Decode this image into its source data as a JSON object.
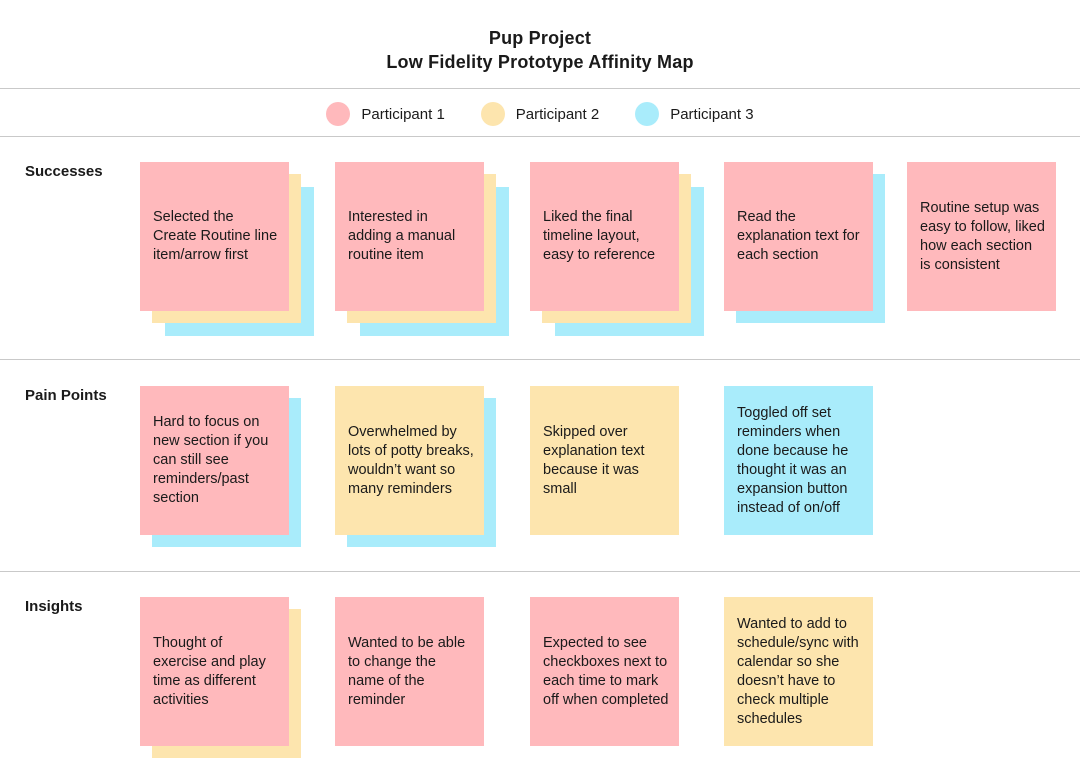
{
  "header": {
    "title_line1": "Pup Project",
    "title_line2": "Low Fidelity Prototype Affinity Map"
  },
  "colors": {
    "participant_1": "#ffb9bc",
    "participant_2": "#fde5ae",
    "participant_3": "#a9ecfb"
  },
  "legend": [
    {
      "label": "Participant 1",
      "color": "#ffb9bc"
    },
    {
      "label": "Participant 2",
      "color": "#fde5ae"
    },
    {
      "label": "Participant 3",
      "color": "#a9ecfb"
    }
  ],
  "rows": [
    {
      "label": "Successes",
      "notes": [
        {
          "text": "Selected the Create Routine line item/arrow first",
          "stack": [
            "#ffb9bc",
            "#fde5ae",
            "#a9ecfb"
          ]
        },
        {
          "text": "Interested in adding a manual routine item",
          "stack": [
            "#ffb9bc",
            "#fde5ae",
            "#a9ecfb"
          ]
        },
        {
          "text": "Liked the final timeline layout, easy to reference",
          "stack": [
            "#ffb9bc",
            "#fde5ae",
            "#a9ecfb"
          ]
        },
        {
          "text": "Read the explanation text for each section",
          "stack": [
            "#ffb9bc",
            "#a9ecfb"
          ]
        },
        {
          "text": "Routine setup was easy to follow, liked how each section is consistent",
          "stack": [
            "#ffb9bc"
          ]
        }
      ]
    },
    {
      "label": "Pain Points",
      "notes": [
        {
          "text": "Hard to focus on new section if you can still see reminders/past section",
          "stack": [
            "#ffb9bc",
            "#a9ecfb"
          ]
        },
        {
          "text": "Overwhelmed by lots of potty breaks, wouldn’t want so many reminders",
          "stack": [
            "#fde5ae",
            "#a9ecfb"
          ]
        },
        {
          "text": "Skipped over explanation text because it was small",
          "stack": [
            "#fde5ae"
          ]
        },
        {
          "text": "Toggled off set reminders when done because he thought it was an expansion button instead of on/off",
          "stack": [
            "#a9ecfb"
          ]
        }
      ]
    },
    {
      "label": "Insights",
      "notes": [
        {
          "text": "Thought of exercise and play time as different activities",
          "stack": [
            "#ffb9bc",
            "#fde5ae"
          ]
        },
        {
          "text": "Wanted to be able to change the name of the reminder",
          "stack": [
            "#ffb9bc"
          ]
        },
        {
          "text": "Expected to see checkboxes next to each time to mark off when completed",
          "stack": [
            "#ffb9bc"
          ]
        },
        {
          "text": "Wanted to add to schedule/sync with calendar so she doesn’t have to check multiple schedules",
          "stack": [
            "#fde5ae"
          ]
        }
      ]
    }
  ]
}
